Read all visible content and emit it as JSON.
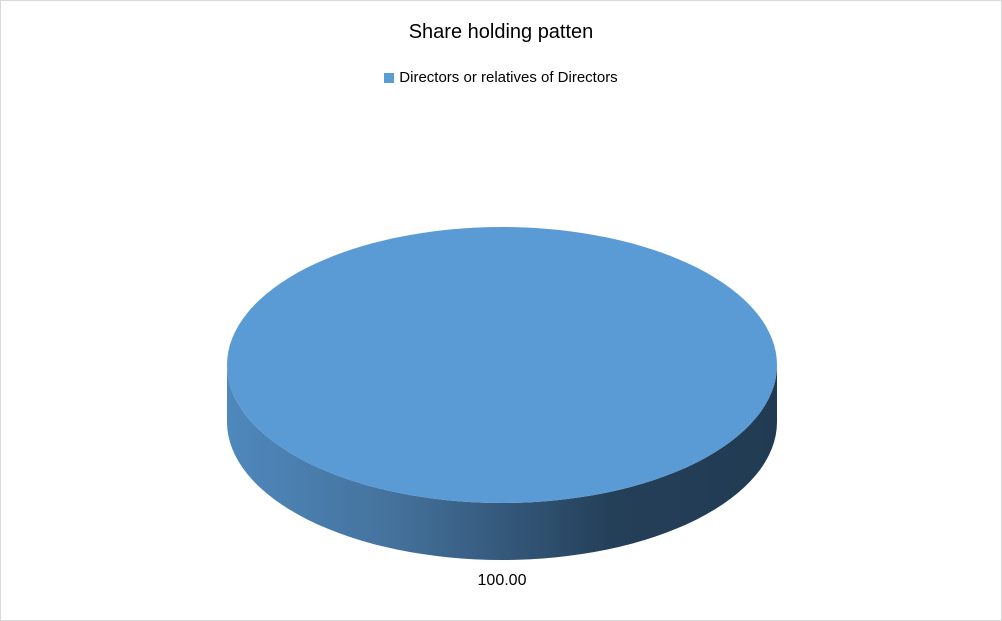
{
  "chart_data": {
    "type": "pie",
    "style": "3d",
    "title": "Share holding patten",
    "categories": [
      "Directors or relatives of Directors"
    ],
    "values": [
      100.0
    ],
    "data_labels": [
      "100.00"
    ],
    "legend": "top",
    "colors": [
      "#5b9bd5"
    ]
  }
}
